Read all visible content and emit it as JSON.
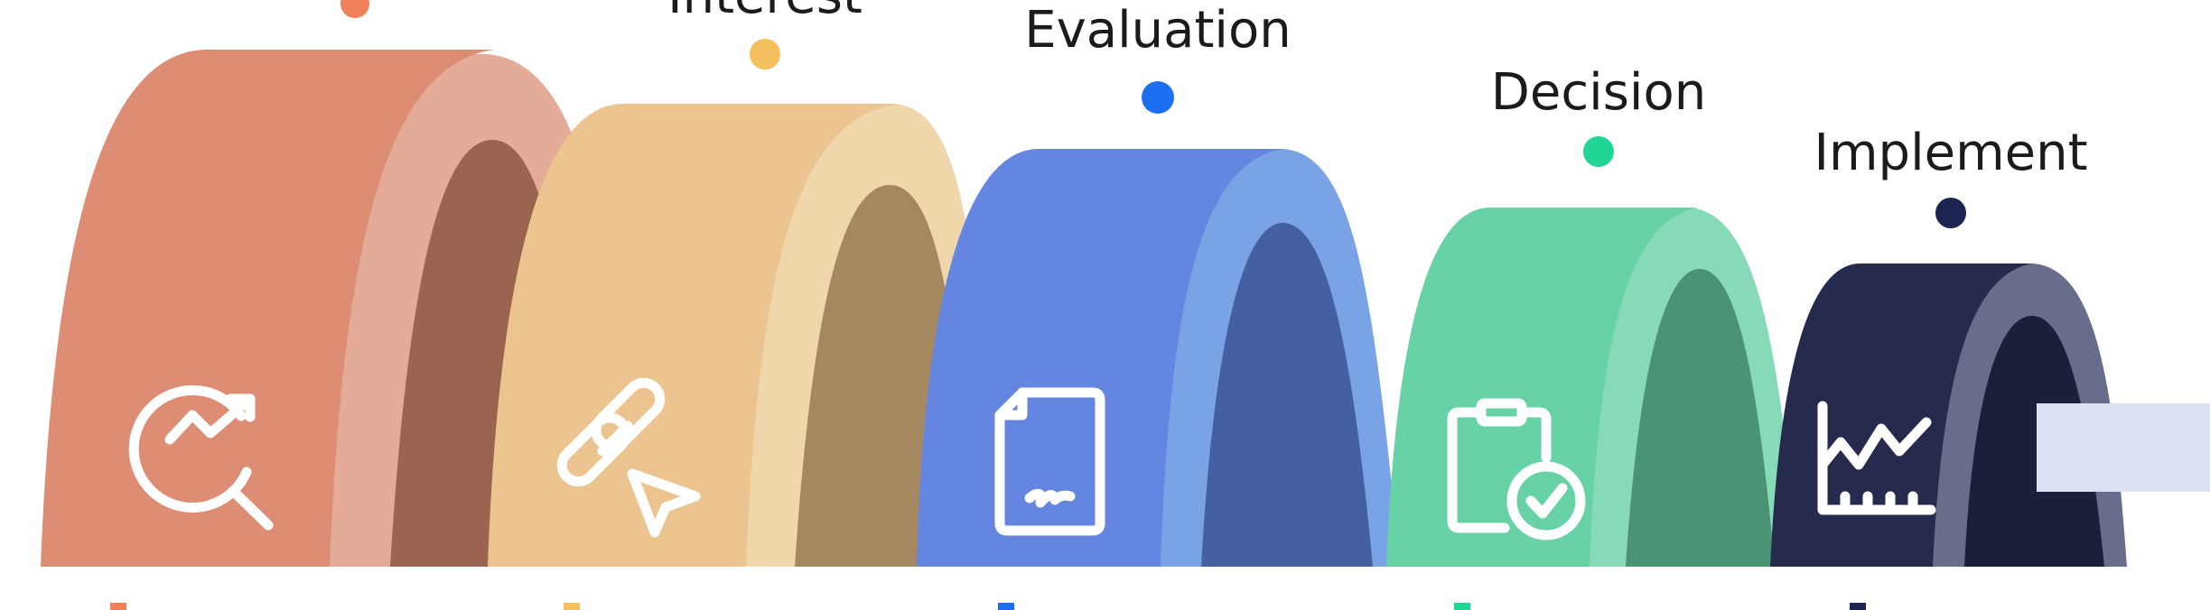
{
  "diagram": {
    "stages": [
      {
        "label": "",
        "icon": "growth-search-icon",
        "colors": {
          "front": "#de8d75",
          "side": "#e4ab98",
          "inner": "#9a6450",
          "dot": "#f0805a"
        }
      },
      {
        "label": "Interest",
        "icon": "link-cursor-icon",
        "colors": {
          "front": "#ecc48f",
          "side": "#f0d6ab",
          "inner": "#a68860",
          "dot": "#f6bf5e"
        }
      },
      {
        "label": "Evaluation",
        "icon": "document-signature-icon",
        "colors": {
          "front": "#6586e0",
          "side": "#7aa3e6",
          "inner": "#455fa3",
          "dot": "#1d6ef0"
        }
      },
      {
        "label": "Decision",
        "icon": "clipboard-check-icon",
        "colors": {
          "front": "#68d2a7",
          "side": "#87dab8",
          "inner": "#4a9374",
          "dot": "#1fd693"
        }
      },
      {
        "label": "Implement",
        "icon": "line-chart-icon",
        "colors": {
          "front": "#262b4d",
          "side": "#676d8a",
          "inner": "#1c1f3a",
          "dot": "#1e2452"
        }
      }
    ],
    "side_panel_color": "#dbe1f2"
  }
}
